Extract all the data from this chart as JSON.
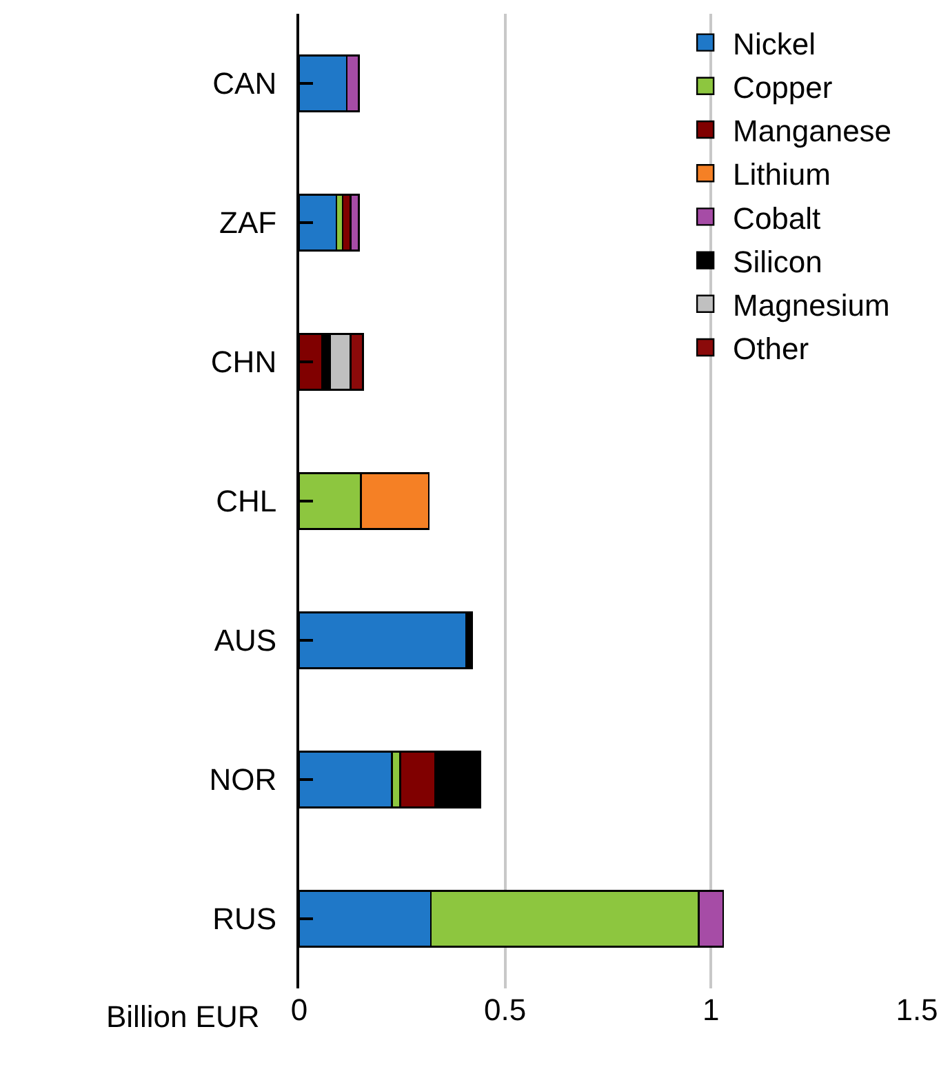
{
  "chart_data": {
    "type": "bar",
    "orientation": "horizontal",
    "stacked": true,
    "xlabel": "Billion EUR",
    "categories": [
      "CAN",
      "ZAF",
      "CHN",
      "CHL",
      "AUS",
      "NOR",
      "RUS"
    ],
    "series": [
      {
        "name": "Nickel",
        "color": "#1f78c8",
        "values": [
          0.115,
          0.09,
          null,
          null,
          0.405,
          0.225,
          0.32
        ]
      },
      {
        "name": "Copper",
        "color": "#8dc63f",
        "values": [
          null,
          0.015,
          null,
          0.15,
          null,
          0.02,
          0.65
        ]
      },
      {
        "name": "Manganese",
        "color": "#800000",
        "values": [
          null,
          0.02,
          0.055,
          null,
          null,
          0.085,
          null
        ]
      },
      {
        "name": "Lithium",
        "color": "#f58025",
        "values": [
          null,
          null,
          null,
          0.165,
          null,
          null,
          null
        ]
      },
      {
        "name": "Cobalt",
        "color": "#a64ca6",
        "values": [
          0.03,
          0.02,
          null,
          null,
          null,
          null,
          0.06
        ]
      },
      {
        "name": "Silicon",
        "color": "#000000",
        "values": [
          null,
          null,
          0.02,
          null,
          0.015,
          0.11,
          null
        ]
      },
      {
        "name": "Magnesium",
        "color": "#c0c0c0",
        "values": [
          null,
          null,
          0.05,
          null,
          null,
          null,
          null
        ]
      },
      {
        "name": "Other",
        "color": "#8b0a0a",
        "values": [
          null,
          null,
          0.03,
          null,
          null,
          null,
          null
        ]
      }
    ],
    "xlim": [
      0,
      1.5
    ],
    "xticks": [
      0,
      0.5,
      1,
      1.5
    ],
    "grid": "x",
    "legend": "top right"
  }
}
